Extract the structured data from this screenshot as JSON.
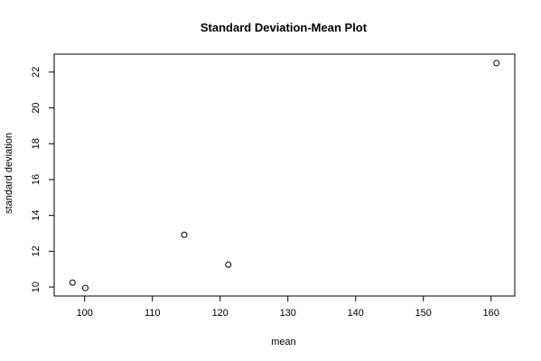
{
  "chart_data": {
    "type": "scatter",
    "title": "Standard Deviation-Mean Plot",
    "xlabel": "mean",
    "ylabel": "standard deviation",
    "xlim": [
      95.5,
      163.5
    ],
    "ylim": [
      9.5,
      23.0
    ],
    "x_ticks": [
      100,
      110,
      120,
      130,
      140,
      150,
      160
    ],
    "y_ticks": [
      10,
      12,
      14,
      16,
      18,
      20,
      22
    ],
    "grid": false,
    "legend": "none",
    "marker": "open-circle",
    "points": [
      {
        "x": 98.2,
        "y": 10.25
      },
      {
        "x": 100.1,
        "y": 9.95
      },
      {
        "x": 114.7,
        "y": 12.92
      },
      {
        "x": 121.2,
        "y": 11.25
      },
      {
        "x": 160.8,
        "y": 22.5
      }
    ]
  }
}
